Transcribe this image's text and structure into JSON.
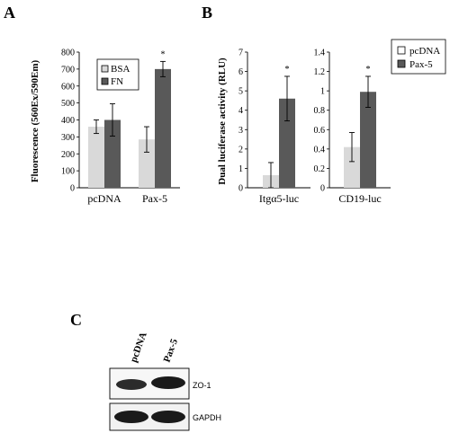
{
  "colors": {
    "light": "#d9d9d9",
    "dark": "#595959",
    "axis": "#000000"
  },
  "panels": {
    "a": "A",
    "b": "B",
    "c": "C"
  },
  "chart_data": [
    {
      "type": "bar",
      "ylabel": "Fluorescence (560Ex/590Em)",
      "categories": [
        "pcDNA",
        "Pax-5"
      ],
      "ylim": [
        0,
        800
      ],
      "yticks": [
        0,
        100,
        200,
        300,
        400,
        500,
        600,
        700,
        800
      ],
      "series": [
        {
          "name": "BSA",
          "values": [
            360,
            285
          ],
          "errors": [
            40,
            75
          ]
        },
        {
          "name": "FN",
          "values": [
            400,
            700
          ],
          "errors": [
            95,
            45
          ]
        }
      ],
      "annotations": [
        "*"
      ],
      "legend": "top-left"
    },
    {
      "type": "bar",
      "ylabel": "Dual luciferase activity (RLU)",
      "categories": [
        "Itgα5-luc"
      ],
      "ylim": [
        0,
        7
      ],
      "yticks": [
        0,
        1,
        2,
        3,
        4,
        5,
        6,
        7
      ],
      "series": [
        {
          "name": "pcDNA",
          "values": [
            0.65
          ],
          "errors": [
            0.65
          ]
        },
        {
          "name": "Pax-5",
          "values": [
            4.6
          ],
          "errors": [
            1.15
          ]
        }
      ],
      "annotations": [
        "*"
      ]
    },
    {
      "type": "bar",
      "categories": [
        "CD19-luc"
      ],
      "ylim": [
        0,
        1.4
      ],
      "yticks": [
        "0",
        "0.2",
        "0.4",
        "0.6",
        "0.8",
        "1",
        "1.2",
        "1.4"
      ],
      "series": [
        {
          "name": "pcDNA",
          "values": [
            0.42
          ],
          "errors": [
            0.15
          ]
        },
        {
          "name": "Pax-5",
          "values": [
            0.99
          ],
          "errors": [
            0.16
          ]
        }
      ],
      "annotations": [
        "*"
      ],
      "legend": "top-right"
    }
  ],
  "western_blot": {
    "lanes": [
      "pcDNA",
      "Pax-5"
    ],
    "bands": [
      "ZO-1",
      "GAPDH"
    ]
  }
}
